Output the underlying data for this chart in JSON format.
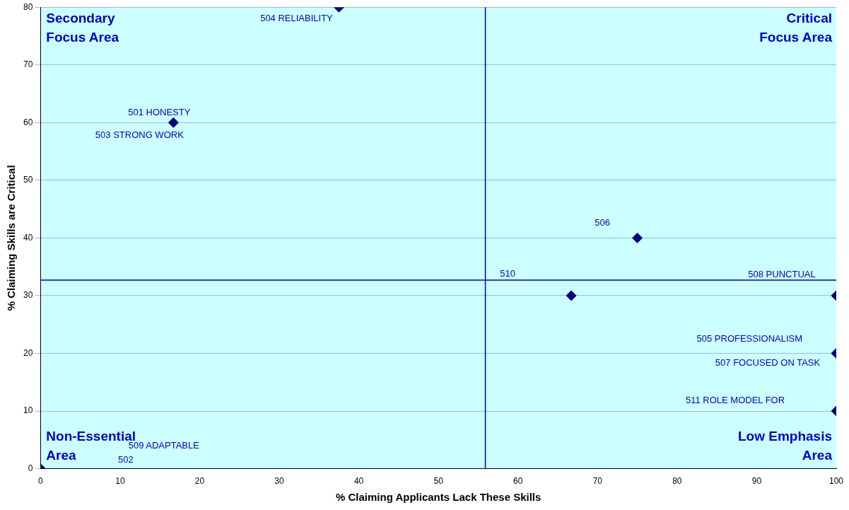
{
  "chart_data": {
    "type": "scatter",
    "xlabel": "% Claiming Applicants Lack These Skills",
    "ylabel": "% Claiming Skills are Critical",
    "x": [
      37.5,
      16.7,
      75,
      66.7,
      100,
      100,
      100,
      0
    ],
    "values": [
      80,
      60,
      40,
      30,
      30,
      20,
      10,
      0
    ],
    "color": "#000080",
    "marker": "diamond",
    "grid": "y",
    "legend": false,
    "xlim": [
      0,
      100
    ],
    "xticks": [
      0,
      10,
      20,
      30,
      40,
      50,
      60,
      70,
      80,
      90,
      100
    ],
    "ylim": [
      0,
      80
    ],
    "yticks": [
      0,
      10,
      20,
      30,
      40,
      50,
      60,
      70,
      80
    ],
    "ref_lines": [
      {
        "axis": "x",
        "value": 55.9,
        "color": "#0000cc"
      },
      {
        "axis": "y",
        "value": 32.7,
        "color": "#0000cc"
      }
    ],
    "annotations": [
      "Secondary\nFocus Area",
      "Critical\nFocus Area",
      "Non-Essential\nArea",
      "Low Emphasis\nArea",
      {
        "text": "504 RELIABILITY",
        "x": 37.5,
        "y": 80
      },
      {
        "text": "501 HONESTY",
        "x": 16.7,
        "y": 60
      },
      {
        "text": "503 STRONG WORK",
        "x": 16.7,
        "y": 60
      },
      "506",
      "510",
      {
        "text": "508 PUNCTUAL",
        "x": 100,
        "y": 30
      },
      "505 PROFESSIONALISM",
      {
        "text": "507 FOCUSED ON TASK",
        "x": 100,
        "y": 20
      },
      "511 ROLE MODEL FOR",
      "509 ADAPTABLE",
      "502"
    ]
  }
}
